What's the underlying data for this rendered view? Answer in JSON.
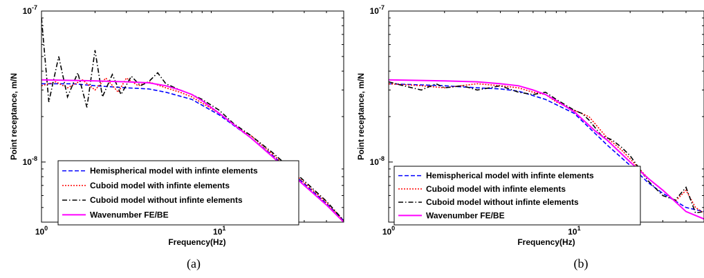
{
  "chart_data": [
    {
      "panel": "a",
      "caption": "(a)",
      "type": "line",
      "xlabel": "Frequency(Hz)",
      "ylabel": "Point receptance, m/N",
      "xscale": "log",
      "yscale": "log",
      "xlim": [
        1,
        50
      ],
      "ylim": [
        4e-09,
        1e-07
      ],
      "xticks": [
        {
          "value": 1,
          "base": "10",
          "exp": "0"
        },
        {
          "value": 10,
          "base": "10",
          "exp": "1"
        }
      ],
      "yticks": [
        {
          "value": 1e-08,
          "base": "10",
          "exp": "-8"
        },
        {
          "value": 1e-07,
          "base": "10",
          "exp": "-7"
        }
      ],
      "legend_position": "bottom-left",
      "series": [
        {
          "name": "Hemispherical model with infinte elements",
          "color": "#0000ff",
          "dash": "dashed",
          "points": [
            [
              1,
              3.3e-08
            ],
            [
              1.5,
              3.3e-08
            ],
            [
              2,
              3.2e-08
            ],
            [
              3,
              3.1e-08
            ],
            [
              4,
              3.05e-08
            ],
            [
              5,
              2.9e-08
            ],
            [
              7,
              2.6e-08
            ],
            [
              10,
              2.05e-08
            ],
            [
              15,
              1.45e-08
            ],
            [
              20,
              1.1e-08
            ],
            [
              30,
              7.2e-09
            ],
            [
              40,
              5.3e-09
            ],
            [
              50,
              4.1e-09
            ]
          ]
        },
        {
          "name": "Cuboid model with infinte elements",
          "color": "#ff0000",
          "dash": "dotted",
          "points": [
            [
              1,
              3.2e-08
            ],
            [
              1.2,
              3.4e-08
            ],
            [
              1.4,
              3.1e-08
            ],
            [
              1.7,
              3.5e-08
            ],
            [
              2,
              3e-08
            ],
            [
              2.3,
              3.6e-08
            ],
            [
              2.7,
              2.9e-08
            ],
            [
              3,
              3.6e-08
            ],
            [
              3.5,
              3.2e-08
            ],
            [
              4,
              3.4e-08
            ],
            [
              5,
              3.1e-08
            ],
            [
              6,
              2.9e-08
            ],
            [
              7,
              2.7e-08
            ],
            [
              10,
              2.1e-08
            ],
            [
              13,
              1.65e-08
            ],
            [
              15,
              1.5e-08
            ],
            [
              20,
              1.12e-08
            ],
            [
              30,
              7.3e-09
            ],
            [
              40,
              5.4e-09
            ],
            [
              50,
              4.1e-09
            ]
          ]
        },
        {
          "name": "Cuboid model without infinte elements",
          "color": "#000000",
          "dash": "dashdot",
          "points": [
            [
              1,
              9e-08
            ],
            [
              1.1,
              2.5e-08
            ],
            [
              1.25,
              5e-08
            ],
            [
              1.4,
              2.7e-08
            ],
            [
              1.6,
              3.9e-08
            ],
            [
              1.8,
              2.3e-08
            ],
            [
              2,
              5.5e-08
            ],
            [
              2.2,
              2.7e-08
            ],
            [
              2.5,
              3.8e-08
            ],
            [
              2.8,
              2.8e-08
            ],
            [
              3.2,
              3.7e-08
            ],
            [
              3.6,
              3.2e-08
            ],
            [
              4,
              3.4e-08
            ],
            [
              4.5,
              3.9e-08
            ],
            [
              5,
              3.3e-08
            ],
            [
              6,
              3e-08
            ],
            [
              7,
              2.8e-08
            ],
            [
              8,
              2.6e-08
            ],
            [
              10,
              2.2e-08
            ],
            [
              12,
              1.8e-08
            ],
            [
              15,
              1.5e-08
            ],
            [
              20,
              1.15e-08
            ],
            [
              30,
              7.5e-09
            ],
            [
              40,
              5.5e-09
            ],
            [
              50,
              4.1e-09
            ]
          ]
        },
        {
          "name": "Wavenumber FE/BE",
          "color": "#ff00ff",
          "dash": "solid",
          "points": [
            [
              1,
              3.5e-08
            ],
            [
              2,
              3.45e-08
            ],
            [
              3,
              3.4e-08
            ],
            [
              4,
              3.35e-08
            ],
            [
              5,
              3.2e-08
            ],
            [
              6,
              3e-08
            ],
            [
              7,
              2.8e-08
            ],
            [
              8,
              2.55e-08
            ],
            [
              10,
              2.1e-08
            ],
            [
              13,
              1.65e-08
            ],
            [
              15,
              1.45e-08
            ],
            [
              20,
              1.08e-08
            ],
            [
              30,
              7e-09
            ],
            [
              40,
              5.2e-09
            ],
            [
              50,
              4e-09
            ]
          ]
        }
      ]
    },
    {
      "panel": "b",
      "caption": "(b)",
      "type": "line",
      "xlabel": "Frequency(Hz)",
      "ylabel": "Point receptance, m/N",
      "xscale": "log",
      "yscale": "log",
      "xlim": [
        1,
        50
      ],
      "ylim": [
        4e-09,
        1e-07
      ],
      "xticks": [
        {
          "value": 1,
          "base": "10",
          "exp": "0"
        },
        {
          "value": 10,
          "base": "10",
          "exp": "1"
        }
      ],
      "yticks": [
        {
          "value": 1e-08,
          "base": "10",
          "exp": "-8"
        },
        {
          "value": 1e-07,
          "base": "10",
          "exp": "-7"
        }
      ],
      "legend_position": "bottom-left",
      "series": [
        {
          "name": "Hemispherical model with infinte elements",
          "color": "#0000ff",
          "dash": "dashed",
          "points": [
            [
              1,
              3.3e-08
            ],
            [
              2,
              3.2e-08
            ],
            [
              3,
              3.1e-08
            ],
            [
              4,
              3.05e-08
            ],
            [
              5,
              2.95e-08
            ],
            [
              7,
              2.6e-08
            ],
            [
              10,
              2.1e-08
            ],
            [
              15,
              1.3e-08
            ],
            [
              20,
              9.5e-09
            ],
            [
              25,
              7.3e-09
            ],
            [
              30,
              6.2e-09
            ],
            [
              40,
              5e-09
            ],
            [
              50,
              4.7e-09
            ]
          ]
        },
        {
          "name": "Cuboid model with infinte elements",
          "color": "#ff0000",
          "dash": "dotted",
          "points": [
            [
              1,
              3.3e-08
            ],
            [
              1.5,
              3.2e-08
            ],
            [
              2,
              3.1e-08
            ],
            [
              3,
              3.3e-08
            ],
            [
              4,
              3.2e-08
            ],
            [
              5,
              3.1e-08
            ],
            [
              6,
              2.9e-08
            ],
            [
              7,
              2.8e-08
            ],
            [
              8,
              2.5e-08
            ],
            [
              10,
              2.2e-08
            ],
            [
              12,
              2e-08
            ],
            [
              15,
              1.45e-08
            ],
            [
              18,
              1.2e-08
            ],
            [
              20,
              1.05e-08
            ],
            [
              25,
              7.8e-09
            ],
            [
              30,
              6.5e-09
            ],
            [
              35,
              5.5e-09
            ],
            [
              40,
              6.5e-09
            ],
            [
              45,
              5e-09
            ],
            [
              50,
              4.6e-09
            ]
          ]
        },
        {
          "name": "Cuboid model without infinte elements",
          "color": "#000000",
          "dash": "dashdot",
          "points": [
            [
              1,
              3.4e-08
            ],
            [
              1.2,
              3.2e-08
            ],
            [
              1.5,
              3e-08
            ],
            [
              1.8,
              3.3e-08
            ],
            [
              2,
              3.1e-08
            ],
            [
              2.5,
              3.2e-08
            ],
            [
              3,
              3e-08
            ],
            [
              3.5,
              3.1e-08
            ],
            [
              4,
              3.2e-08
            ],
            [
              5,
              2.9e-08
            ],
            [
              6,
              2.8e-08
            ],
            [
              7,
              2.9e-08
            ],
            [
              8,
              2.6e-08
            ],
            [
              10,
              2.2e-08
            ],
            [
              11,
              2.1e-08
            ],
            [
              12,
              1.9e-08
            ],
            [
              14,
              1.5e-08
            ],
            [
              16,
              1.4e-08
            ],
            [
              18,
              1.25e-08
            ],
            [
              20,
              1.1e-08
            ],
            [
              25,
              7.5e-09
            ],
            [
              30,
              6e-09
            ],
            [
              35,
              5.6e-09
            ],
            [
              40,
              6.8e-09
            ],
            [
              45,
              4.6e-09
            ],
            [
              50,
              4.7e-09
            ]
          ]
        },
        {
          "name": "Wavenumber FE/BE",
          "color": "#ff00ff",
          "dash": "solid",
          "points": [
            [
              1,
              3.5e-08
            ],
            [
              2,
              3.45e-08
            ],
            [
              3,
              3.4e-08
            ],
            [
              4,
              3.3e-08
            ],
            [
              5,
              3.2e-08
            ],
            [
              6,
              3e-08
            ],
            [
              7,
              2.8e-08
            ],
            [
              8,
              2.55e-08
            ],
            [
              10,
              2.15e-08
            ],
            [
              13,
              1.6e-08
            ],
            [
              15,
              1.4e-08
            ],
            [
              20,
              1e-08
            ],
            [
              25,
              7.8e-09
            ],
            [
              30,
              6.5e-09
            ],
            [
              40,
              4.7e-09
            ],
            [
              50,
              4.2e-09
            ]
          ]
        }
      ]
    }
  ]
}
